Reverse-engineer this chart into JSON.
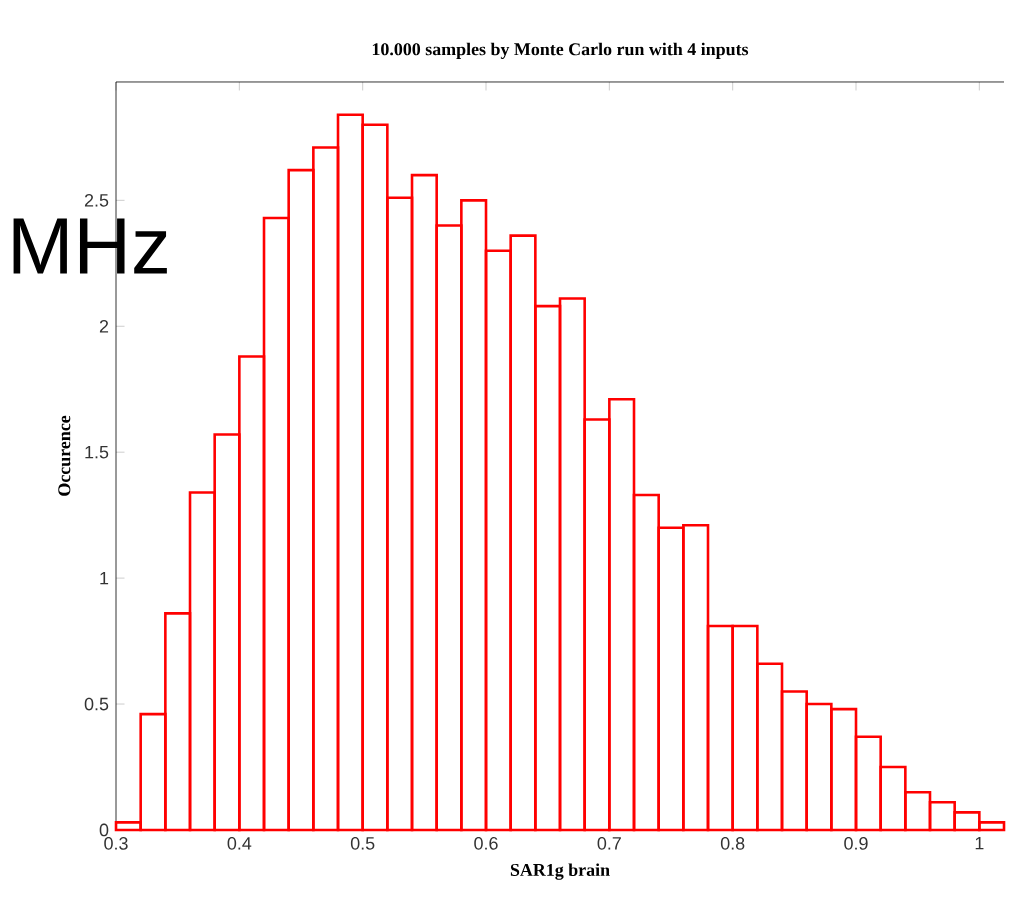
{
  "chart_data": {
    "type": "histogram",
    "title": "10.000 samples by Monte Carlo run with 4 inputs",
    "xlabel": "SAR1g brain",
    "ylabel": "Occurence",
    "bins": [
      0.3,
      0.32,
      0.34,
      0.36,
      0.38,
      0.4,
      0.42,
      0.44,
      0.46,
      0.48,
      0.5,
      0.52,
      0.54,
      0.56,
      0.58,
      0.6,
      0.62,
      0.64,
      0.66,
      0.68,
      0.7,
      0.72,
      0.74,
      0.76,
      0.78,
      0.8,
      0.82,
      0.84,
      0.86,
      0.88,
      0.9,
      0.92,
      0.94,
      0.96,
      0.98,
      1.0,
      1.02
    ],
    "values": [
      0.03,
      0.46,
      0.86,
      1.34,
      1.57,
      1.88,
      2.43,
      2.62,
      2.71,
      2.84,
      2.8,
      2.51,
      2.6,
      2.4,
      2.5,
      2.3,
      2.36,
      2.08,
      2.11,
      1.63,
      1.71,
      1.33,
      1.2,
      1.21,
      0.81,
      0.81,
      0.66,
      0.55,
      0.5,
      0.48,
      0.37,
      0.25,
      0.15,
      0.11,
      0.07,
      0.03
    ],
    "color": "#ff0000",
    "xlim": [
      0.3,
      1.02
    ],
    "ylim": [
      0,
      2.97
    ],
    "xticks": [
      0.3,
      0.4,
      0.5,
      0.6,
      0.7,
      0.8,
      0.9,
      1
    ],
    "yticks": [
      0,
      0.5,
      1,
      1.5,
      2,
      2.5
    ],
    "annotations": [
      "MHz"
    ]
  }
}
